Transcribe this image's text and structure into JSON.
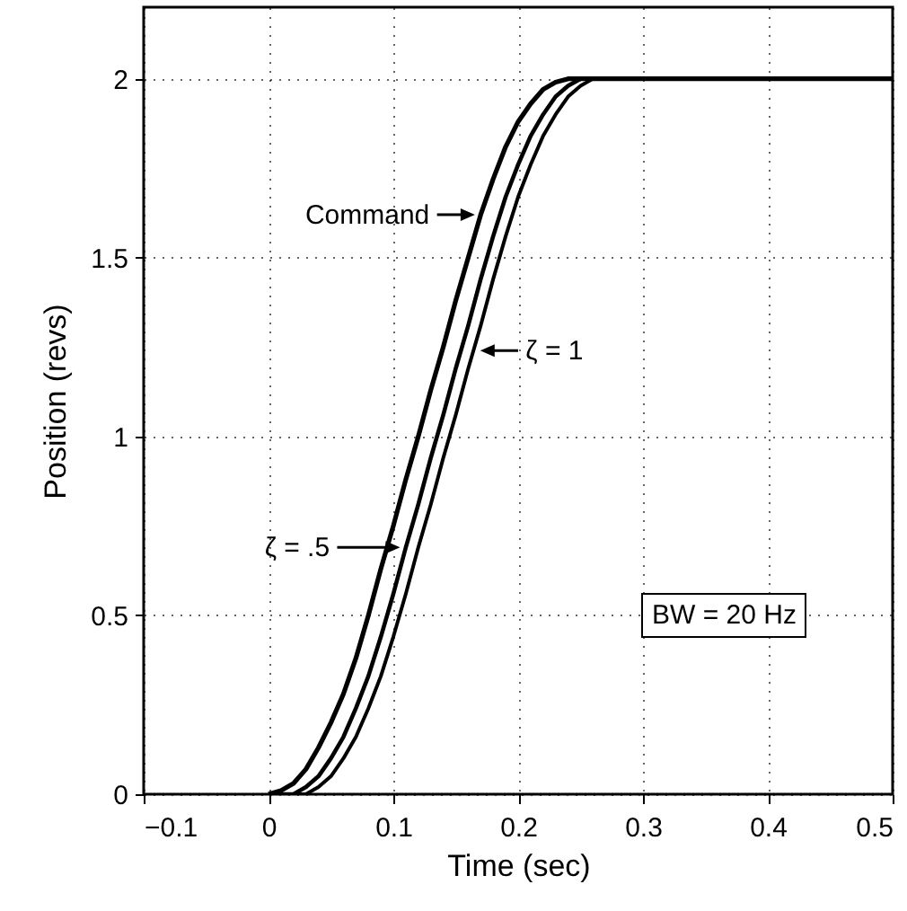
{
  "chart_data": {
    "type": "line",
    "xlabel": "Time (sec)",
    "ylabel": "Position (revs)",
    "xlim": [
      -0.1,
      0.5
    ],
    "ylim": [
      0,
      2.2
    ],
    "xticks": [
      -0.1,
      0,
      0.1,
      0.2,
      0.3,
      0.4,
      0.5
    ],
    "yticks": [
      0,
      0.5,
      1,
      1.5,
      2
    ],
    "grid": true,
    "line_style": "solid",
    "series": [
      {
        "color": "#000000",
        "x": [
          0,
          0.01,
          0.02,
          0.03,
          0.04,
          0.05,
          0.06,
          0.07,
          0.08,
          0.09,
          0.1,
          0.11,
          0.12,
          0.13,
          0.14,
          0.15,
          0.16,
          0.17,
          0.18,
          0.19,
          0.2,
          0.21,
          0.22,
          0.23,
          0.24,
          0.5
        ],
        "values": [
          0,
          0.01,
          0.03,
          0.07,
          0.13,
          0.2,
          0.28,
          0.38,
          0.5,
          0.63,
          0.75,
          0.88,
          1,
          1.13,
          1.25,
          1.38,
          1.5,
          1.62,
          1.72,
          1.81,
          1.88,
          1.93,
          1.97,
          1.99,
          2,
          2
        ]
      },
      {
        "color": "#000000",
        "x": [
          0,
          0.01,
          0.02,
          0.03,
          0.04,
          0.05,
          0.06,
          0.07,
          0.08,
          0.09,
          0.1,
          0.11,
          0.12,
          0.13,
          0.14,
          0.15,
          0.16,
          0.17,
          0.18,
          0.19,
          0.2,
          0.21,
          0.22,
          0.23,
          0.24,
          0.25,
          0.26,
          0.5
        ],
        "values": [
          0,
          0,
          0,
          0.02,
          0.05,
          0.1,
          0.16,
          0.24,
          0.33,
          0.44,
          0.56,
          0.69,
          0.81,
          0.94,
          1.06,
          1.19,
          1.31,
          1.44,
          1.56,
          1.67,
          1.76,
          1.84,
          1.9,
          1.95,
          1.98,
          2,
          2,
          2
        ]
      },
      {
        "color": "#000000",
        "x": [
          0,
          0.01,
          0.02,
          0.03,
          0.04,
          0.05,
          0.06,
          0.07,
          0.08,
          0.09,
          0.1,
          0.11,
          0.12,
          0.13,
          0.14,
          0.15,
          0.16,
          0.17,
          0.18,
          0.19,
          0.2,
          0.21,
          0.22,
          0.23,
          0.24,
          0.25,
          0.26,
          0.27,
          0.5
        ],
        "values": [
          0,
          0,
          0,
          0,
          0.02,
          0.05,
          0.1,
          0.16,
          0.24,
          0.33,
          0.44,
          0.56,
          0.69,
          0.81,
          0.94,
          1.06,
          1.19,
          1.31,
          1.44,
          1.56,
          1.67,
          1.76,
          1.84,
          1.9,
          1.95,
          1.98,
          2,
          2,
          2
        ]
      }
    ],
    "annotations": [
      {
        "text": "Command",
        "x": 0.17,
        "y": 1.62
      },
      {
        "text": "ζ = 1",
        "x": 0.165,
        "y": 1.24
      },
      {
        "text": "ζ = .5",
        "x": 0.11,
        "y": 0.69
      },
      "BW = 20 Hz"
    ]
  }
}
